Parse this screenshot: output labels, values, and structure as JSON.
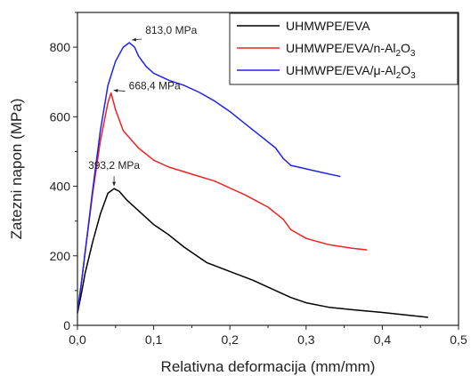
{
  "chart_data": {
    "type": "line",
    "xlabel": "Relativna deformacija (mm/mm)",
    "ylabel": "Zatezni napon (MPa)",
    "xlim": [
      0.0,
      0.5
    ],
    "ylim": [
      0,
      900
    ],
    "xticks": [
      0.0,
      0.1,
      0.2,
      0.3,
      0.4,
      0.5
    ],
    "xtick_labels": [
      "0,0",
      "0,1",
      "0,2",
      "0,3",
      "0,4",
      "0,5"
    ],
    "yticks": [
      0,
      200,
      400,
      600,
      800
    ],
    "ytick_labels": [
      "0",
      "200",
      "400",
      "600",
      "800"
    ],
    "grid": false,
    "legend_position": "top-right",
    "series": [
      {
        "name": "UHMWPE/EVA",
        "color": "#000000",
        "x": [
          0.0,
          0.005,
          0.01,
          0.02,
          0.03,
          0.04,
          0.048,
          0.055,
          0.065,
          0.08,
          0.1,
          0.12,
          0.14,
          0.17,
          0.2,
          0.23,
          0.26,
          0.28,
          0.3,
          0.33,
          0.36,
          0.4,
          0.43,
          0.46
        ],
        "y": [
          35,
          90,
          150,
          240,
          320,
          380,
          393.2,
          385,
          360,
          330,
          290,
          260,
          225,
          180,
          155,
          130,
          100,
          80,
          65,
          52,
          45,
          37,
          30,
          23
        ]
      },
      {
        "name": "UHMWPE/EVA/n-Al2O3",
        "color": "#ee2222",
        "x": [
          0.0,
          0.005,
          0.01,
          0.02,
          0.03,
          0.04,
          0.044,
          0.05,
          0.06,
          0.08,
          0.1,
          0.12,
          0.15,
          0.18,
          0.2,
          0.22,
          0.25,
          0.27,
          0.28,
          0.3,
          0.33,
          0.36,
          0.38
        ],
        "y": [
          40,
          120,
          210,
          380,
          530,
          640,
          668.4,
          620,
          560,
          510,
          475,
          455,
          435,
          415,
          395,
          375,
          340,
          305,
          275,
          250,
          232,
          222,
          217
        ]
      },
      {
        "name": "UHMWPE/EVA/μ-Al2O3",
        "color": "#2222ee",
        "x": [
          0.0,
          0.005,
          0.01,
          0.02,
          0.03,
          0.04,
          0.05,
          0.06,
          0.068,
          0.075,
          0.08,
          0.09,
          0.1,
          0.12,
          0.14,
          0.16,
          0.18,
          0.2,
          0.22,
          0.24,
          0.26,
          0.27,
          0.28,
          0.29,
          0.3,
          0.32,
          0.345
        ],
        "y": [
          40,
          120,
          210,
          390,
          560,
          690,
          760,
          800,
          813,
          800,
          775,
          745,
          725,
          705,
          690,
          670,
          645,
          615,
          580,
          545,
          510,
          480,
          460,
          455,
          450,
          440,
          428
        ]
      }
    ],
    "legend_entries": [
      "UHMWPE/EVA",
      "UHMWPE/EVA/n-Al",
      "UHMWPE/EVA/μ-Al"
    ],
    "legend_subscripts": [
      "2",
      "3"
    ],
    "legend_suffix": "O",
    "annotations": [
      {
        "text": "813,0 MPa",
        "x": 0.068,
        "y": 813
      },
      {
        "text": "668,4 MPa",
        "x": 0.044,
        "y": 668.4
      },
      {
        "text": "393,2 MPa",
        "x": 0.048,
        "y": 393.2
      }
    ]
  }
}
